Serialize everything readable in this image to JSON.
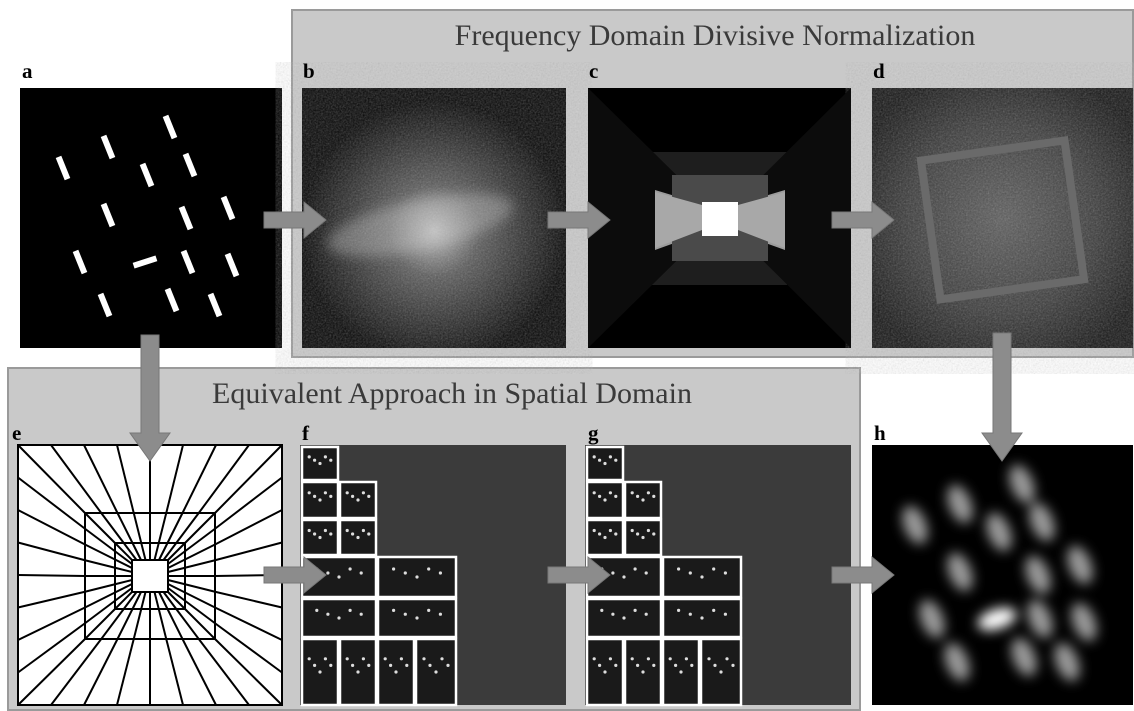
{
  "titles": {
    "frequency": "Frequency Domain Divisive Normalization",
    "spatial": "Equivalent Approach in Spatial Domain"
  },
  "panels": [
    {
      "label": "a"
    },
    {
      "label": "b"
    },
    {
      "label": "c"
    },
    {
      "label": "d"
    },
    {
      "label": "e"
    },
    {
      "label": "f"
    },
    {
      "label": "g"
    },
    {
      "label": "h"
    }
  ]
}
